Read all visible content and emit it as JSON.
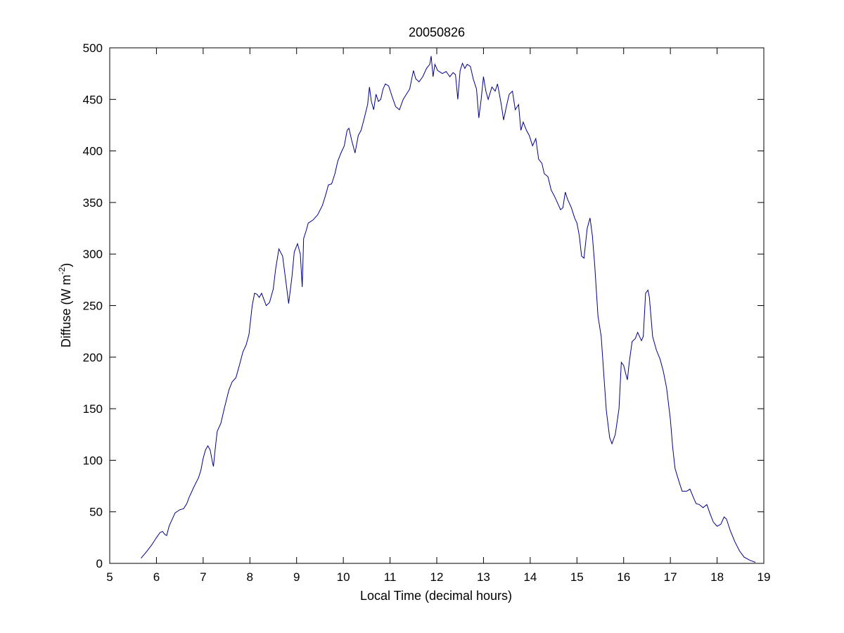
{
  "chart_data": {
    "type": "line",
    "title": "20050826",
    "xlabel": "Local Time (decimal hours)",
    "ylabel_main": "Diffuse (W m",
    "ylabel_sup": "-2",
    "ylabel_close": ")",
    "xlim": [
      5,
      19
    ],
    "ylim": [
      0,
      500
    ],
    "xticks": [
      5,
      6,
      7,
      8,
      9,
      10,
      11,
      12,
      13,
      14,
      15,
      16,
      17,
      18,
      19
    ],
    "yticks": [
      0,
      50,
      100,
      150,
      200,
      250,
      300,
      350,
      400,
      450,
      500
    ],
    "grid": false,
    "colors": {
      "line": "#00008b",
      "axes": "#000000",
      "background": "#ffffff"
    },
    "series": [
      {
        "points": [
          [
            5.67,
            5
          ],
          [
            5.8,
            12
          ],
          [
            5.9,
            18
          ],
          [
            6.0,
            25
          ],
          [
            6.08,
            30
          ],
          [
            6.13,
            31
          ],
          [
            6.18,
            28
          ],
          [
            6.22,
            27
          ],
          [
            6.27,
            36
          ],
          [
            6.33,
            42
          ],
          [
            6.4,
            49
          ],
          [
            6.5,
            52
          ],
          [
            6.58,
            53
          ],
          [
            6.65,
            58
          ],
          [
            6.7,
            64
          ],
          [
            6.8,
            74
          ],
          [
            6.9,
            83
          ],
          [
            6.95,
            90
          ],
          [
            7.0,
            102
          ],
          [
            7.05,
            110
          ],
          [
            7.1,
            114
          ],
          [
            7.15,
            110
          ],
          [
            7.2,
            98
          ],
          [
            7.22,
            94
          ],
          [
            7.25,
            108
          ],
          [
            7.3,
            128
          ],
          [
            7.38,
            136
          ],
          [
            7.45,
            150
          ],
          [
            7.55,
            168
          ],
          [
            7.62,
            176
          ],
          [
            7.7,
            180
          ],
          [
            7.78,
            193
          ],
          [
            7.85,
            205
          ],
          [
            7.92,
            212
          ],
          [
            7.98,
            222
          ],
          [
            8.05,
            250
          ],
          [
            8.1,
            262
          ],
          [
            8.15,
            261
          ],
          [
            8.2,
            258
          ],
          [
            8.25,
            262
          ],
          [
            8.3,
            256
          ],
          [
            8.35,
            250
          ],
          [
            8.42,
            253
          ],
          [
            8.5,
            266
          ],
          [
            8.55,
            285
          ],
          [
            8.62,
            305
          ],
          [
            8.7,
            298
          ],
          [
            8.78,
            270
          ],
          [
            8.83,
            252
          ],
          [
            8.9,
            278
          ],
          [
            8.95,
            302
          ],
          [
            9.02,
            310
          ],
          [
            9.08,
            300
          ],
          [
            9.12,
            268
          ],
          [
            9.15,
            315
          ],
          [
            9.2,
            322
          ],
          [
            9.25,
            330
          ],
          [
            9.35,
            333
          ],
          [
            9.45,
            338
          ],
          [
            9.55,
            347
          ],
          [
            9.62,
            357
          ],
          [
            9.68,
            367
          ],
          [
            9.75,
            368
          ],
          [
            9.82,
            378
          ],
          [
            9.88,
            390
          ],
          [
            9.95,
            398
          ],
          [
            10.02,
            405
          ],
          [
            10.08,
            420
          ],
          [
            10.12,
            422
          ],
          [
            10.18,
            410
          ],
          [
            10.25,
            398
          ],
          [
            10.32,
            415
          ],
          [
            10.38,
            420
          ],
          [
            10.45,
            432
          ],
          [
            10.52,
            445
          ],
          [
            10.56,
            462
          ],
          [
            10.6,
            448
          ],
          [
            10.65,
            440
          ],
          [
            10.7,
            455
          ],
          [
            10.75,
            448
          ],
          [
            10.8,
            450
          ],
          [
            10.85,
            460
          ],
          [
            10.9,
            465
          ],
          [
            10.97,
            463
          ],
          [
            11.05,
            452
          ],
          [
            11.12,
            443
          ],
          [
            11.2,
            440
          ],
          [
            11.28,
            450
          ],
          [
            11.35,
            455
          ],
          [
            11.42,
            460
          ],
          [
            11.5,
            478
          ],
          [
            11.55,
            470
          ],
          [
            11.62,
            467
          ],
          [
            11.7,
            472
          ],
          [
            11.78,
            480
          ],
          [
            11.85,
            484
          ],
          [
            11.88,
            492
          ],
          [
            11.92,
            472
          ],
          [
            11.96,
            484
          ],
          [
            12.02,
            478
          ],
          [
            12.12,
            475
          ],
          [
            12.2,
            477
          ],
          [
            12.28,
            472
          ],
          [
            12.35,
            476
          ],
          [
            12.4,
            474
          ],
          [
            12.45,
            450
          ],
          [
            12.5,
            478
          ],
          [
            12.55,
            485
          ],
          [
            12.6,
            480
          ],
          [
            12.65,
            484
          ],
          [
            12.72,
            482
          ],
          [
            12.78,
            470
          ],
          [
            12.85,
            460
          ],
          [
            12.9,
            432
          ],
          [
            12.95,
            450
          ],
          [
            13.0,
            472
          ],
          [
            13.05,
            458
          ],
          [
            13.1,
            450
          ],
          [
            13.18,
            462
          ],
          [
            13.25,
            458
          ],
          [
            13.3,
            465
          ],
          [
            13.38,
            445
          ],
          [
            13.43,
            430
          ],
          [
            13.5,
            445
          ],
          [
            13.55,
            455
          ],
          [
            13.62,
            458
          ],
          [
            13.68,
            440
          ],
          [
            13.75,
            445
          ],
          [
            13.8,
            420
          ],
          [
            13.85,
            428
          ],
          [
            13.92,
            420
          ],
          [
            13.98,
            415
          ],
          [
            14.05,
            405
          ],
          [
            14.12,
            412
          ],
          [
            14.18,
            392
          ],
          [
            14.25,
            388
          ],
          [
            14.3,
            378
          ],
          [
            14.38,
            375
          ],
          [
            14.45,
            362
          ],
          [
            14.52,
            356
          ],
          [
            14.6,
            348
          ],
          [
            14.65,
            343
          ],
          [
            14.7,
            345
          ],
          [
            14.75,
            360
          ],
          [
            14.8,
            353
          ],
          [
            14.88,
            345
          ],
          [
            14.95,
            335
          ],
          [
            15.0,
            330
          ],
          [
            15.05,
            318
          ],
          [
            15.1,
            298
          ],
          [
            15.15,
            296
          ],
          [
            15.22,
            325
          ],
          [
            15.28,
            335
          ],
          [
            15.33,
            318
          ],
          [
            15.38,
            290
          ],
          [
            15.45,
            240
          ],
          [
            15.52,
            220
          ],
          [
            15.58,
            180
          ],
          [
            15.63,
            148
          ],
          [
            15.7,
            122
          ],
          [
            15.75,
            116
          ],
          [
            15.82,
            125
          ],
          [
            15.9,
            150
          ],
          [
            15.95,
            195
          ],
          [
            16.0,
            192
          ],
          [
            16.05,
            183
          ],
          [
            16.08,
            178
          ],
          [
            16.12,
            195
          ],
          [
            16.18,
            215
          ],
          [
            16.25,
            218
          ],
          [
            16.3,
            224
          ],
          [
            16.38,
            216
          ],
          [
            16.42,
            220
          ],
          [
            16.47,
            262
          ],
          [
            16.52,
            265
          ],
          [
            16.55,
            258
          ],
          [
            16.62,
            220
          ],
          [
            16.7,
            207
          ],
          [
            16.78,
            198
          ],
          [
            16.85,
            186
          ],
          [
            16.92,
            170
          ],
          [
            17.0,
            140
          ],
          [
            17.05,
            112
          ],
          [
            17.1,
            92
          ],
          [
            17.18,
            80
          ],
          [
            17.25,
            70
          ],
          [
            17.35,
            70
          ],
          [
            17.42,
            72
          ],
          [
            17.5,
            63
          ],
          [
            17.55,
            58
          ],
          [
            17.62,
            57
          ],
          [
            17.7,
            54
          ],
          [
            17.78,
            57
          ],
          [
            17.85,
            48
          ],
          [
            17.92,
            40
          ],
          [
            18.0,
            36
          ],
          [
            18.08,
            38
          ],
          [
            18.15,
            45
          ],
          [
            18.2,
            43
          ],
          [
            18.28,
            32
          ],
          [
            18.38,
            21
          ],
          [
            18.48,
            12
          ],
          [
            18.58,
            6
          ],
          [
            18.7,
            3
          ],
          [
            18.82,
            1
          ]
        ]
      }
    ]
  }
}
